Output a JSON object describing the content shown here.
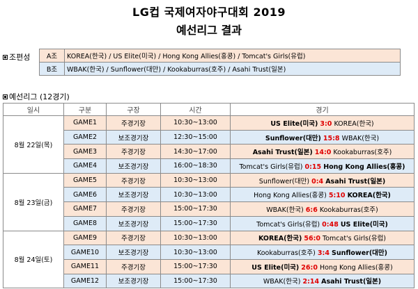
{
  "title": "LG컵 국제여자야구대회 2019",
  "subtitle": "예선리그 결과",
  "groups_label": "조편성",
  "groups": [
    {
      "name": "A조",
      "teams": "KOREA(한국) / US Elite(미국) / Hong Kong Allies(홍콩) / Tomcat's Girls(유럽)"
    },
    {
      "name": "B조",
      "teams": "WBAK(한국) / Sunflower(대만) / Kookaburras(호주) / Asahi Trust(일본)"
    }
  ],
  "prelim_label": "예선리그 (12경기)",
  "headers": {
    "date": "일시",
    "game": "구분",
    "venue": "구장",
    "time": "시간",
    "match": "경기"
  },
  "days": [
    "8월 22일(목)",
    "8월 23일(금)",
    "8월 24일(토)"
  ],
  "games": [
    {
      "id": "GAME1",
      "venue": "주경기장",
      "time": "10:30~13:00",
      "home": "US Elite(미국)",
      "score": "3:0",
      "away": "KOREA(한국)",
      "winner": "home"
    },
    {
      "id": "GAME2",
      "venue": "보조경기장",
      "time": "12:30~15:00",
      "home": "Sunflower(대만)",
      "score": "15:8",
      "away": "WBAK(한국)",
      "winner": "home"
    },
    {
      "id": "GAME3",
      "venue": "주경기장",
      "time": "14:30~17:00",
      "home": "Asahi Trust(일본)",
      "score": "14:0",
      "away": "Kookaburras(호주)",
      "winner": "home"
    },
    {
      "id": "GAME4",
      "venue": "보조경기장",
      "time": "16:00~18:30",
      "home": "Tomcat's Girls(유럽)",
      "score": "0:15",
      "away": "Hong Kong Allies(홍콩)",
      "winner": "away"
    },
    {
      "id": "GAME5",
      "venue": "주경기장",
      "time": "10:30~13:00",
      "home": "Sunflower(대만)",
      "score": "0:4",
      "away": "Asahi Trust(일본)",
      "winner": "away"
    },
    {
      "id": "GAME6",
      "venue": "보조경기장",
      "time": "10:30~13:00",
      "home": "Hong Kong Allies(홍콩)",
      "score": "5:10",
      "away": "KOREA(한국)",
      "winner": "away"
    },
    {
      "id": "GAME7",
      "venue": "주경기장",
      "time": "15:00~17:30",
      "home": "WBAK(한국)",
      "score": "6:6",
      "away": "Kookaburras(호주)",
      "winner": "none"
    },
    {
      "id": "GAME8",
      "venue": "보조경기장",
      "time": "15:00~17:30",
      "home": "Tomcat's Girls(유럽)",
      "score": "0:48",
      "away": "US Elite(미국)",
      "winner": "away"
    },
    {
      "id": "GAME9",
      "venue": "주경기장",
      "time": "10:30~13:00",
      "home": "KOREA(한국)",
      "score": "56:0",
      "away": "Tomcat's Girls(유럽)",
      "winner": "home"
    },
    {
      "id": "GAME10",
      "venue": "보조경기장",
      "time": "10:30~13:00",
      "home": "Kookaburras(호주)",
      "score": "3:4",
      "away": "Sunflower(대만)",
      "winner": "away"
    },
    {
      "id": "GAME11",
      "venue": "주경기장",
      "time": "15:00~17:30",
      "home": "US Elite(미국)",
      "score": "26:0",
      "away": "Hong Kong Allies(홍콩)",
      "winner": "home"
    },
    {
      "id": "GAME12",
      "venue": "보조경기장",
      "time": "15:00~17:30",
      "home": "WBAK(한국)",
      "score": "2:14",
      "away": "Asahi Trust(일본)",
      "winner": "away"
    }
  ],
  "colors": {
    "pink_row": "#fbe5d6",
    "blue_row": "#deebf7",
    "score": "#e00000"
  }
}
